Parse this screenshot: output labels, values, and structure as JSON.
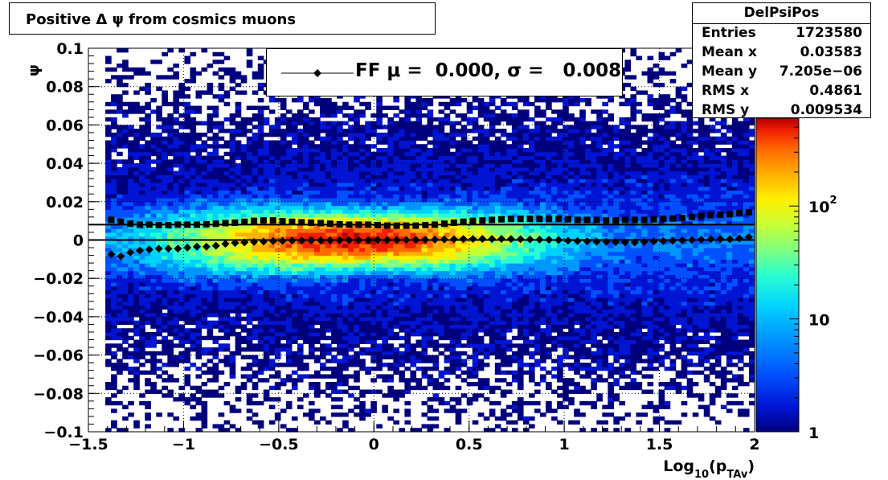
{
  "chart_data": {
    "type": "heatmap",
    "title": "Positive Δ ψ from cosmics muons",
    "xlabel": "Log",
    "xlabel_sub": "10",
    "xlabel_paren": "(p",
    "xlabel_sub2": "TAv",
    "xlabel_close": ")",
    "ylabel": "ψ",
    "xlim": [
      -1.5,
      2
    ],
    "ylim": [
      -0.1,
      0.1
    ],
    "zlim": [
      1,
      600
    ],
    "z_scale": "log",
    "grid": true,
    "x_ticks": [
      "−1.5",
      "−1",
      "−0.5",
      "0",
      "0.5",
      "1",
      "1.5",
      "2"
    ],
    "x_tick_values": [
      -1.5,
      -1,
      -0.5,
      0,
      0.5,
      1,
      1.5,
      2
    ],
    "y_ticks": [
      "0.1",
      "0.08",
      "0.06",
      "0.04",
      "0.02",
      "0",
      "−0.02",
      "−0.04",
      "−0.06",
      "−0.08",
      "−0.1"
    ],
    "y_tick_values": [
      0.1,
      0.08,
      0.06,
      0.04,
      0.02,
      0,
      -0.02,
      -0.04,
      -0.06,
      -0.08,
      -0.1
    ],
    "z_ticks": [
      "10",
      "10",
      "1"
    ],
    "z_tick_exp": [
      "2",
      "",
      ""
    ],
    "z_tick_values": [
      100,
      10,
      1
    ],
    "profile_mean": {
      "x": [
        -1.38,
        -1.33,
        -1.28,
        -1.23,
        -1.18,
        -1.13,
        -1.08,
        -1.03,
        -0.98,
        -0.93,
        -0.88,
        -0.83,
        -0.78,
        -0.73,
        -0.68,
        -0.63,
        -0.58,
        -0.53,
        -0.48,
        -0.43,
        -0.38,
        -0.33,
        -0.28,
        -0.23,
        -0.18,
        -0.13,
        -0.08,
        -0.03,
        0.02,
        0.07,
        0.12,
        0.17,
        0.22,
        0.27,
        0.32,
        0.37,
        0.42,
        0.47,
        0.52,
        0.57,
        0.62,
        0.67,
        0.72,
        0.77,
        0.82,
        0.87,
        0.92,
        0.97,
        1.02,
        1.07,
        1.12,
        1.17,
        1.22,
        1.27,
        1.32,
        1.37,
        1.42,
        1.47,
        1.52,
        1.57,
        1.62,
        1.67,
        1.72,
        1.77,
        1.82,
        1.87,
        1.92,
        1.97
      ],
      "y": [
        -0.0075,
        -0.0085,
        -0.0065,
        -0.0055,
        -0.005,
        -0.0045,
        -0.0045,
        -0.0045,
        -0.004,
        -0.0035,
        -0.0035,
        -0.003,
        -0.002,
        -0.0015,
        -0.0012,
        -0.001,
        -0.0008,
        -0.0005,
        -0.0004,
        -0.0003,
        -0.0003,
        -0.0002,
        -0.0002,
        -0.0002,
        -0.0001,
        -0.0001,
        -0.0001,
        -0.0001,
        0.0,
        0.0,
        0.0,
        0.0001,
        0.0001,
        0.0001,
        0.0002,
        0.0003,
        0.0004,
        0.0005,
        0.0005,
        0.0006,
        0.0006,
        0.0006,
        0.0005,
        0.0004,
        0.0003,
        0.0002,
        0.0001,
        0.0,
        -0.0003,
        -0.0005,
        -0.0007,
        -0.0009,
        -0.001,
        -0.0011,
        -0.0012,
        -0.0012,
        -0.001,
        -0.0008,
        -0.0006,
        -0.0004,
        -0.0002,
        0.0,
        0.0002,
        0.0004,
        0.0005,
        0.0004,
        0.0008,
        0.0015
      ]
    },
    "profile_rms": {
      "x": [
        -1.38,
        -1.33,
        -1.28,
        -1.23,
        -1.18,
        -1.13,
        -1.08,
        -1.03,
        -0.98,
        -0.93,
        -0.88,
        -0.83,
        -0.78,
        -0.73,
        -0.68,
        -0.63,
        -0.58,
        -0.53,
        -0.48,
        -0.43,
        -0.38,
        -0.33,
        -0.28,
        -0.23,
        -0.18,
        -0.13,
        -0.08,
        -0.03,
        0.02,
        0.07,
        0.12,
        0.17,
        0.22,
        0.27,
        0.32,
        0.37,
        0.42,
        0.47,
        0.52,
        0.57,
        0.62,
        0.67,
        0.72,
        0.77,
        0.82,
        0.87,
        0.92,
        0.97,
        1.02,
        1.07,
        1.12,
        1.17,
        1.22,
        1.27,
        1.32,
        1.37,
        1.42,
        1.47,
        1.52,
        1.57,
        1.62,
        1.67,
        1.72,
        1.77,
        1.82,
        1.87,
        1.92,
        1.97
      ],
      "y": [
        0.0105,
        0.0095,
        0.0085,
        0.008,
        0.008,
        0.0078,
        0.0078,
        0.008,
        0.008,
        0.008,
        0.0082,
        0.0085,
        0.0088,
        0.009,
        0.0095,
        0.01,
        0.0102,
        0.0102,
        0.0098,
        0.0095,
        0.0092,
        0.009,
        0.0088,
        0.0085,
        0.0082,
        0.008,
        0.008,
        0.008,
        0.0078,
        0.0075,
        0.0075,
        0.0075,
        0.0075,
        0.0078,
        0.008,
        0.0085,
        0.009,
        0.0095,
        0.01,
        0.0102,
        0.0105,
        0.0108,
        0.011,
        0.011,
        0.011,
        0.011,
        0.011,
        0.011,
        0.0108,
        0.0105,
        0.0105,
        0.0105,
        0.0102,
        0.0102,
        0.0105,
        0.0105,
        0.0105,
        0.0108,
        0.011,
        0.0112,
        0.0115,
        0.012,
        0.0125,
        0.013,
        0.0132,
        0.0135,
        0.014,
        0.0145
      ]
    },
    "fit_lines": {
      "y": [
        0.0,
        0.008
      ]
    },
    "legend": {
      "label": "FF μ =  0.000, σ =   0.008",
      "placement": "top"
    },
    "stats": {
      "name": "DelPsiPos",
      "rows": [
        {
          "k": "Entries",
          "v": "1723580"
        },
        {
          "k": "Mean x",
          "v": "0.03583"
        },
        {
          "k": "Mean y",
          "v": "7.205e−06"
        },
        {
          "k": "RMS x",
          "v": "0.4861"
        },
        {
          "k": "RMS y",
          "v": "0.009534"
        }
      ]
    },
    "colors": {
      "palette": [
        "#00007f",
        "#0015d4",
        "#0050ff",
        "#0096ff",
        "#00d2ff",
        "#2affd0",
        "#7fff80",
        "#c6ff36",
        "#fff000",
        "#ffb000",
        "#ff6a00",
        "#f02000",
        "#b40000"
      ],
      "markers": "#000000"
    }
  }
}
